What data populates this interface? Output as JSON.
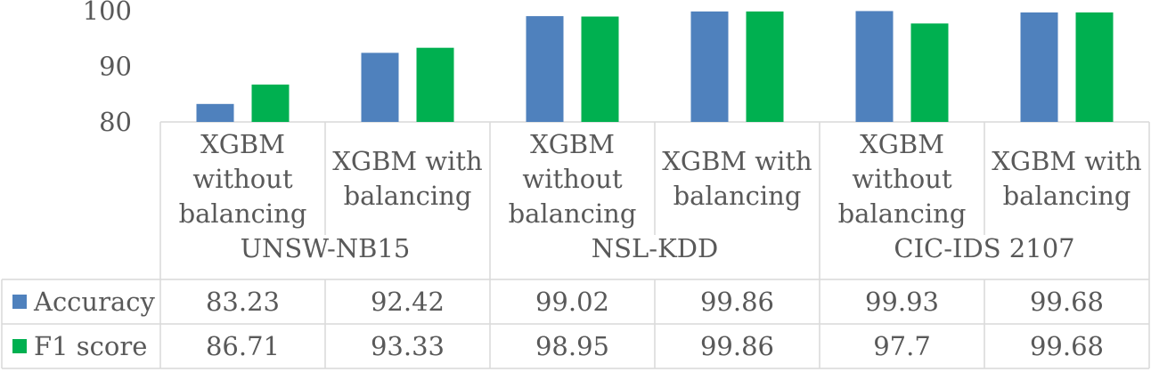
{
  "chart_data": {
    "type": "bar",
    "groups": [
      "UNSW-NB15",
      "NSL-KDD",
      "CIC-IDS 2107"
    ],
    "categories": [
      [
        "XGBM",
        "without",
        "balancing"
      ],
      [
        "XGBM with",
        "balancing"
      ],
      [
        "XGBM",
        "without",
        "balancing"
      ],
      [
        "XGBM with",
        "balancing"
      ],
      [
        "XGBM",
        "without",
        "balancing"
      ],
      [
        "XGBM with",
        "balancing"
      ]
    ],
    "series": [
      {
        "name": "Accuracy",
        "values": [
          83.23,
          92.42,
          99.02,
          99.86,
          99.93,
          99.68
        ],
        "labels": [
          "83.23",
          "92.42",
          "99.02",
          "99.86",
          "99.93",
          "99.68"
        ]
      },
      {
        "name": "F1 score",
        "values": [
          86.71,
          93.33,
          98.95,
          99.86,
          97.7,
          99.68
        ],
        "labels": [
          "86.71",
          "93.33",
          "98.95",
          "99.86",
          "97.7",
          "99.68"
        ]
      }
    ],
    "colors": [
      "#4f81bd",
      "#00b050"
    ],
    "ylim": [
      80,
      100
    ],
    "yticks": [
      "80",
      "90",
      "100"
    ],
    "ytick_values": [
      80,
      90,
      100
    ],
    "data_table": true,
    "legend": "data-table"
  }
}
